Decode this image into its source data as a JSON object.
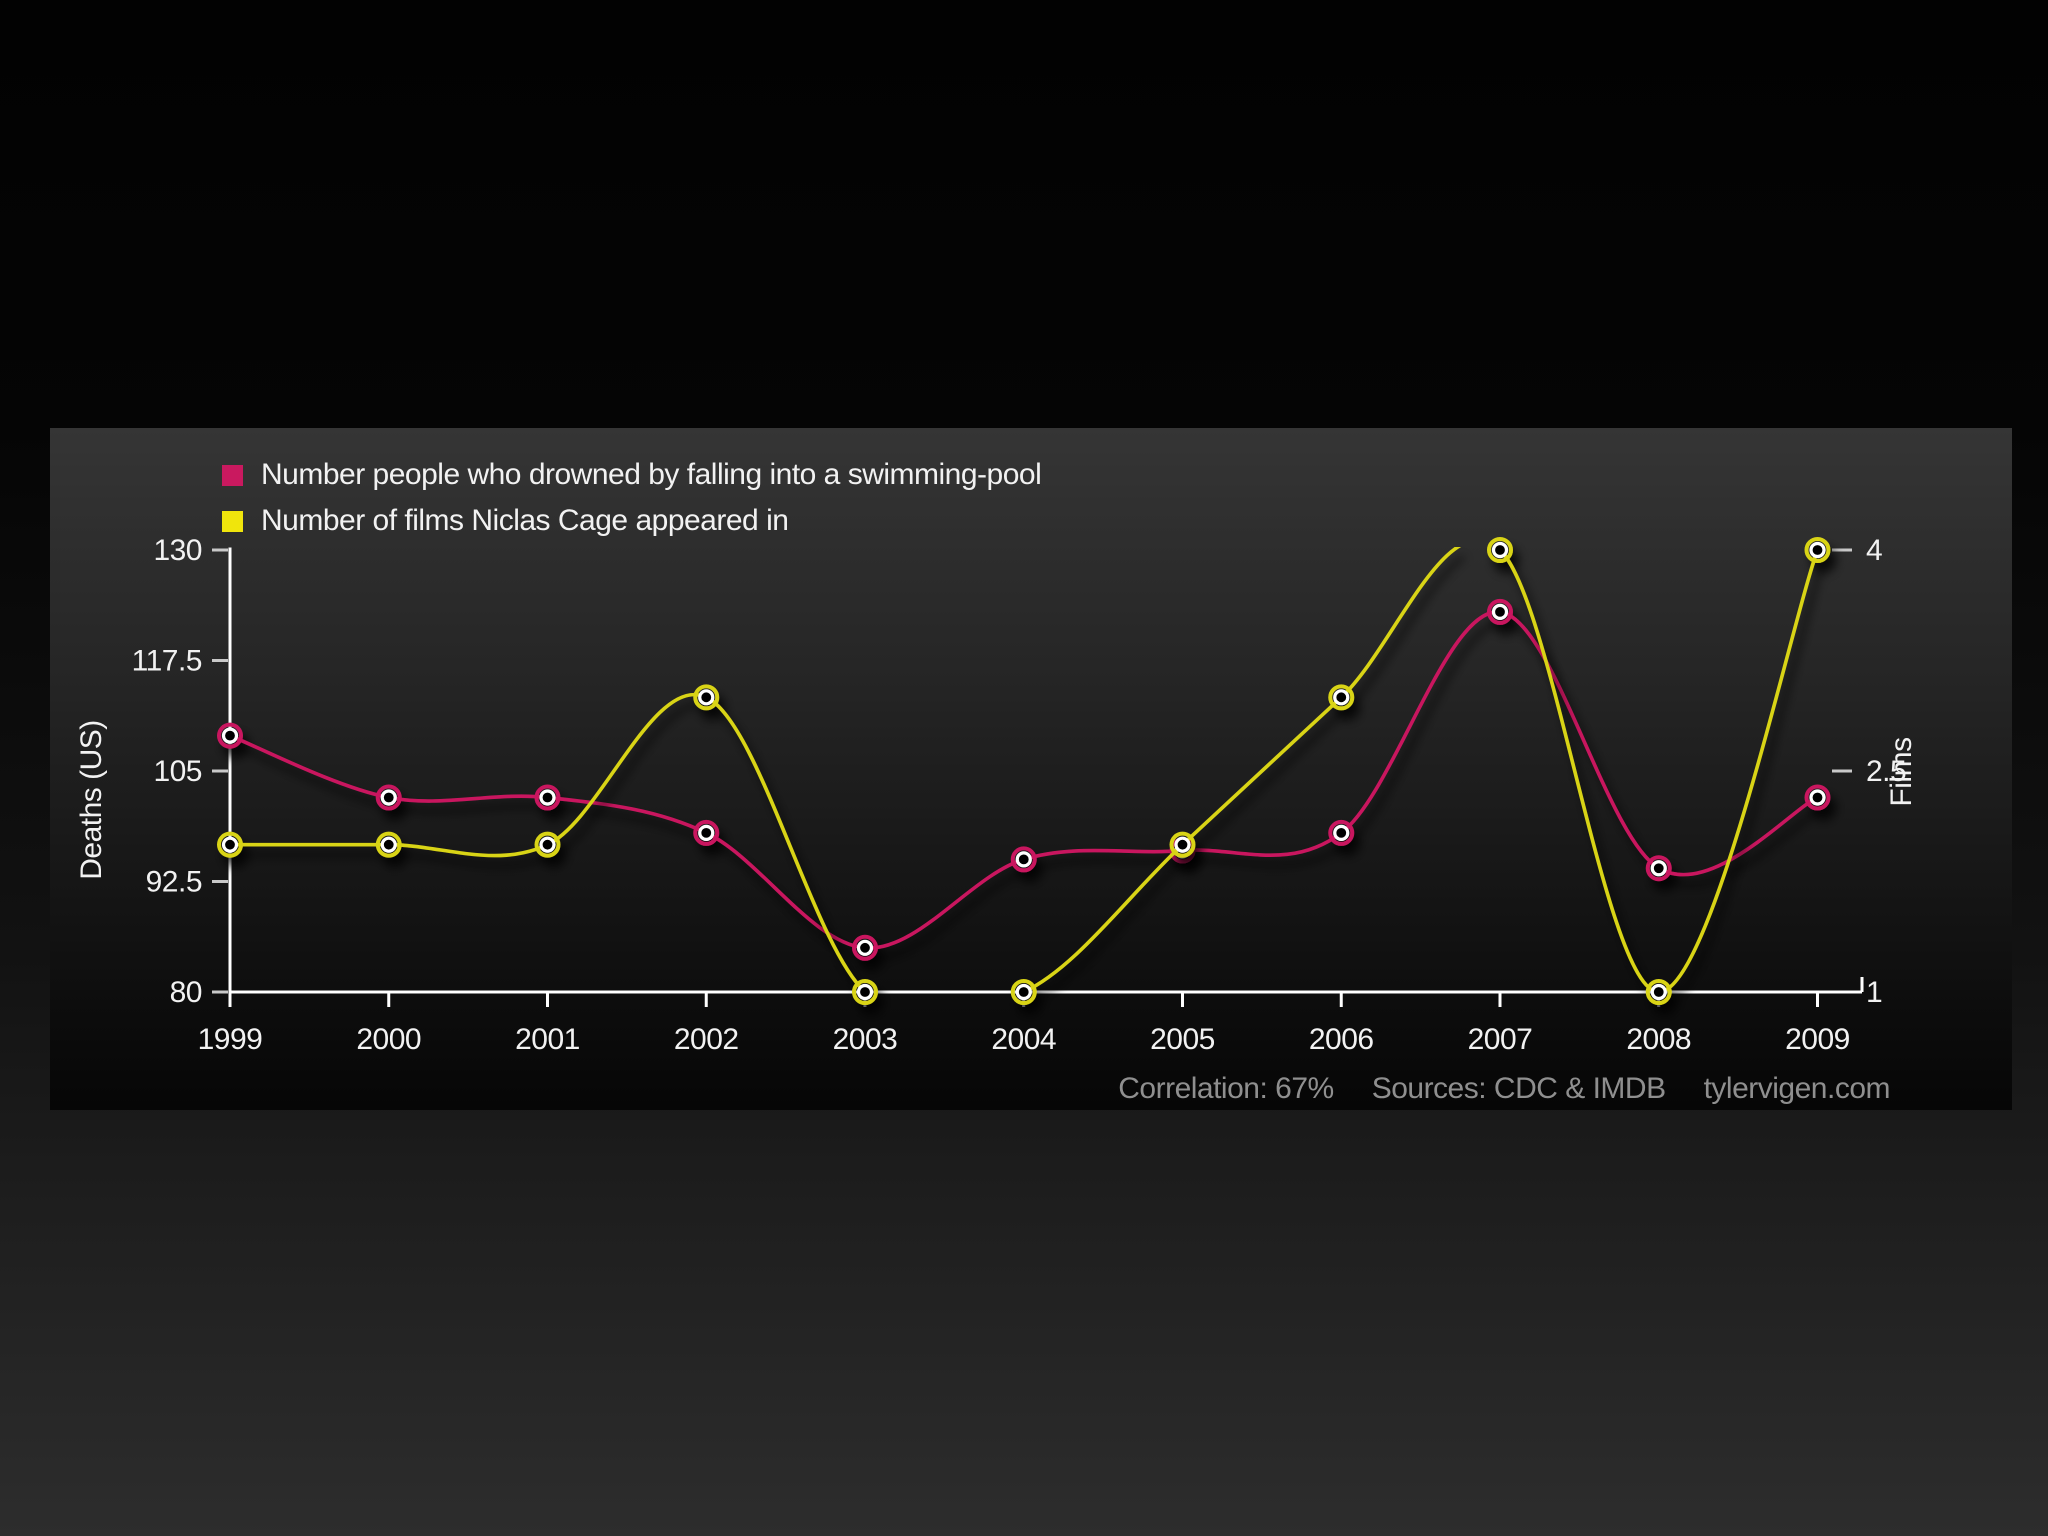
{
  "page": {
    "footer": {
      "correlation": "Correlation: 67%",
      "sources": "Sources: CDC & IMDB",
      "site": "tylervigen.com"
    }
  },
  "chart_data": {
    "type": "line",
    "title": "",
    "x": [
      1999,
      2000,
      2001,
      2002,
      2003,
      2004,
      2005,
      2006,
      2007,
      2008,
      2009
    ],
    "x_tick_labels": [
      "1999",
      "2000",
      "2001",
      "2002",
      "2003",
      "2004",
      "2005",
      "2006",
      "2007",
      "2008",
      "2009"
    ],
    "series": [
      {
        "name": "Number people who drowned by falling into a swimming-pool",
        "axis": "left",
        "color": "#c9195f",
        "values": [
          109,
          102,
          102,
          98,
          85,
          95,
          96,
          98,
          123,
          94,
          102
        ]
      },
      {
        "name": "Number of films Niclas Cage appeared in",
        "axis": "right",
        "color": "#d9d414",
        "values": [
          2,
          2,
          2,
          3,
          1,
          1,
          2,
          3,
          4,
          1,
          4
        ]
      }
    ],
    "y_left": {
      "label": "Deaths (US)",
      "min": 80,
      "max": 130,
      "ticks": [
        130,
        117.5,
        105,
        92.5,
        80
      ],
      "tick_labels": [
        "130",
        "117.5",
        "105",
        "92.5",
        "80"
      ]
    },
    "y_right": {
      "label": "Films",
      "min": 1,
      "max": 4,
      "ticks": [
        4,
        2.5,
        1
      ],
      "tick_labels": [
        "4",
        "2.5",
        "1"
      ]
    },
    "legend_position": "top-left",
    "grid": false,
    "smooth": true
  },
  "style": {
    "axis_color": "#ffffff",
    "tick_color": "#c9c9c9",
    "label_color": "#f2f2f2",
    "footer_color": "#8f8f8f",
    "marker_center": "#060606",
    "marker_inner_ring": "#ffffff"
  }
}
